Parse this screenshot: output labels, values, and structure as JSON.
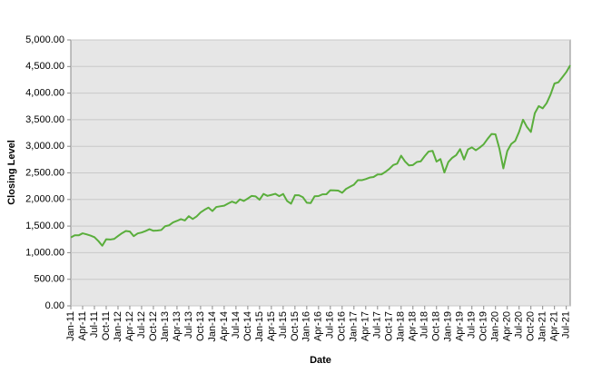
{
  "chart_data": {
    "type": "line",
    "y_label": "Closing Level",
    "x_label": "Date",
    "x": [
      "2011-01",
      "2011-02",
      "2011-03",
      "2011-04",
      "2011-05",
      "2011-06",
      "2011-07",
      "2011-08",
      "2011-09",
      "2011-10",
      "2011-11",
      "2011-12",
      "2012-01",
      "2012-02",
      "2012-03",
      "2012-04",
      "2012-05",
      "2012-06",
      "2012-07",
      "2012-08",
      "2012-09",
      "2012-10",
      "2012-11",
      "2012-12",
      "2013-01",
      "2013-02",
      "2013-03",
      "2013-04",
      "2013-05",
      "2013-06",
      "2013-07",
      "2013-08",
      "2013-09",
      "2013-10",
      "2013-11",
      "2013-12",
      "2014-01",
      "2014-02",
      "2014-03",
      "2014-04",
      "2014-05",
      "2014-06",
      "2014-07",
      "2014-08",
      "2014-09",
      "2014-10",
      "2014-11",
      "2014-12",
      "2015-01",
      "2015-02",
      "2015-03",
      "2015-04",
      "2015-05",
      "2015-06",
      "2015-07",
      "2015-08",
      "2015-09",
      "2015-10",
      "2015-11",
      "2015-12",
      "2016-01",
      "2016-02",
      "2016-03",
      "2016-04",
      "2016-05",
      "2016-06",
      "2016-07",
      "2016-08",
      "2016-09",
      "2016-10",
      "2016-11",
      "2016-12",
      "2017-01",
      "2017-02",
      "2017-03",
      "2017-04",
      "2017-05",
      "2017-06",
      "2017-07",
      "2017-08",
      "2017-09",
      "2017-10",
      "2017-11",
      "2017-12",
      "2018-01",
      "2018-02",
      "2018-03",
      "2018-04",
      "2018-05",
      "2018-06",
      "2018-07",
      "2018-08",
      "2018-09",
      "2018-10",
      "2018-11",
      "2018-12",
      "2019-01",
      "2019-02",
      "2019-03",
      "2019-04",
      "2019-05",
      "2019-06",
      "2019-07",
      "2019-08",
      "2019-09",
      "2019-10",
      "2019-11",
      "2019-12",
      "2020-01",
      "2020-02",
      "2020-03",
      "2020-04",
      "2020-05",
      "2020-06",
      "2020-07",
      "2020-08",
      "2020-09",
      "2020-10",
      "2020-11",
      "2020-12",
      "2021-01",
      "2021-02",
      "2021-03",
      "2021-04",
      "2021-05",
      "2021-06",
      "2021-07",
      "2021-08"
    ],
    "series": [
      {
        "color": "#5aae3c",
        "values": [
          1286,
          1327,
          1326,
          1364,
          1345,
          1321,
          1292,
          1219,
          1131,
          1253,
          1247,
          1258,
          1312,
          1366,
          1408,
          1398,
          1310,
          1362,
          1379,
          1407,
          1441,
          1412,
          1416,
          1426,
          1498,
          1515,
          1569,
          1598,
          1631,
          1606,
          1686,
          1633,
          1682,
          1757,
          1806,
          1848,
          1783,
          1859,
          1872,
          1884,
          1924,
          1960,
          1931,
          2003,
          1972,
          2018,
          2068,
          2059,
          1995,
          2105,
          2068,
          2086,
          2107,
          2063,
          2104,
          1972,
          1920,
          2079,
          2080,
          2044,
          1940,
          1932,
          2060,
          2065,
          2097,
          2099,
          2174,
          2171,
          2168,
          2126,
          2199,
          2239,
          2279,
          2364,
          2363,
          2384,
          2412,
          2423,
          2470,
          2472,
          2519,
          2575,
          2648,
          2674,
          2824,
          2714,
          2641,
          2648,
          2705,
          2718,
          2816,
          2902,
          2914,
          2712,
          2760,
          2507,
          2704,
          2784,
          2834,
          2946,
          2752,
          2942,
          2980,
          2926,
          2977,
          3038,
          3141,
          3231,
          3226,
          2954,
          2585,
          2912,
          3044,
          3100,
          3271,
          3500,
          3363,
          3270,
          3622,
          3756,
          3714,
          3811,
          3973,
          4181,
          4204,
          4298,
          4395,
          4523
        ]
      }
    ],
    "xlim": [
      "2011-01",
      "2021-08"
    ],
    "xticks": [
      {
        "value": "2011-01",
        "label": "Jan-11"
      },
      {
        "value": "2011-04",
        "label": "Apr-11"
      },
      {
        "value": "2011-07",
        "label": "Jul-11"
      },
      {
        "value": "2011-10",
        "label": "Oct-11"
      },
      {
        "value": "2012-01",
        "label": "Jan-12"
      },
      {
        "value": "2012-04",
        "label": "Apr-12"
      },
      {
        "value": "2012-07",
        "label": "Jul-12"
      },
      {
        "value": "2012-10",
        "label": "Oct-12"
      },
      {
        "value": "2013-01",
        "label": "Jan-13"
      },
      {
        "value": "2013-04",
        "label": "Apr-13"
      },
      {
        "value": "2013-07",
        "label": "Jul-13"
      },
      {
        "value": "2013-10",
        "label": "Oct-13"
      },
      {
        "value": "2014-01",
        "label": "Jan-14"
      },
      {
        "value": "2014-04",
        "label": "Apr-14"
      },
      {
        "value": "2014-07",
        "label": "Jul-14"
      },
      {
        "value": "2014-10",
        "label": "Oct-14"
      },
      {
        "value": "2015-01",
        "label": "Jan-15"
      },
      {
        "value": "2015-04",
        "label": "Apr-15"
      },
      {
        "value": "2015-07",
        "label": "Jul-15"
      },
      {
        "value": "2015-10",
        "label": "Oct-15"
      },
      {
        "value": "2016-01",
        "label": "Jan-16"
      },
      {
        "value": "2016-04",
        "label": "Apr-16"
      },
      {
        "value": "2016-07",
        "label": "Jul-16"
      },
      {
        "value": "2016-10",
        "label": "Oct-16"
      },
      {
        "value": "2017-01",
        "label": "Jan-17"
      },
      {
        "value": "2017-04",
        "label": "Apr-17"
      },
      {
        "value": "2017-07",
        "label": "Jul-17"
      },
      {
        "value": "2017-10",
        "label": "Oct-17"
      },
      {
        "value": "2018-01",
        "label": "Jan-18"
      },
      {
        "value": "2018-04",
        "label": "Apr-18"
      },
      {
        "value": "2018-07",
        "label": "Jul-18"
      },
      {
        "value": "2018-10",
        "label": "Oct-18"
      },
      {
        "value": "2019-01",
        "label": "Jan-19"
      },
      {
        "value": "2019-04",
        "label": "Apr-19"
      },
      {
        "value": "2019-07",
        "label": "Jul-19"
      },
      {
        "value": "2019-10",
        "label": "Oct-19"
      },
      {
        "value": "2020-01",
        "label": "Jan-20"
      },
      {
        "value": "2020-04",
        "label": "Apr-20"
      },
      {
        "value": "2020-07",
        "label": "Jul-20"
      },
      {
        "value": "2020-10",
        "label": "Oct-20"
      },
      {
        "value": "2021-01",
        "label": "Jan-21"
      },
      {
        "value": "2021-04",
        "label": "Apr-21"
      },
      {
        "value": "2021-07",
        "label": "Jul-21"
      }
    ],
    "ylim": [
      0,
      5000
    ],
    "yticks": [
      {
        "value": 0,
        "label": "0.00"
      },
      {
        "value": 500,
        "label": "500.00"
      },
      {
        "value": 1000,
        "label": "1,000.00"
      },
      {
        "value": 1500,
        "label": "1,500.00"
      },
      {
        "value": 2000,
        "label": "2,000.00"
      },
      {
        "value": 2500,
        "label": "2,500.00"
      },
      {
        "value": 3000,
        "label": "3,000.00"
      },
      {
        "value": 3500,
        "label": "3,500.00"
      },
      {
        "value": 4000,
        "label": "4,000.00"
      },
      {
        "value": 4500,
        "label": "4,500.00"
      },
      {
        "value": 5000,
        "label": "5,000.00"
      }
    ],
    "grid": true
  }
}
